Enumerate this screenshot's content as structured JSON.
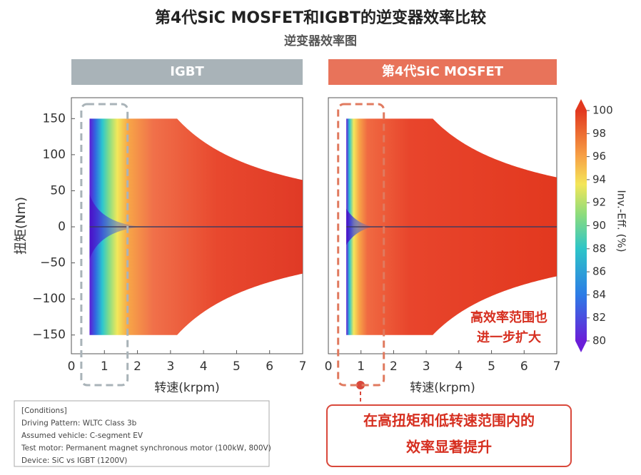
{
  "title": "第4代SiC MOSFET和IGBT的逆变器效率比较",
  "subtitle": "逆变器效率图",
  "chart_data": [
    {
      "type": "contour",
      "title": "IGBT",
      "xlabel": "转速(krpm)",
      "ylabel": "扭矩(Nm)",
      "xlim": [
        0,
        7
      ],
      "xticks": [
        0,
        1,
        2,
        3,
        4,
        5,
        6,
        7
      ],
      "ylim": [
        -176,
        179
      ],
      "yticks": [
        150,
        100,
        50,
        0,
        {
          "value": -50,
          "label": "−50"
        },
        {
          "value": -100,
          "label": "−100"
        },
        {
          "value": -150,
          "label": "−150"
        }
      ]
    },
    {
      "type": "contour",
      "title": "第4代SiC MOSFET",
      "xlabel": "转速(krpm)",
      "xlim": [
        0,
        7
      ],
      "xticks": [
        0,
        1,
        2,
        3,
        4,
        5,
        6,
        7
      ],
      "ylim": [
        -176,
        179
      ]
    }
  ],
  "colorbar": {
    "label": "Inv.-Eff. (%)",
    "lim": [
      80,
      100
    ],
    "ticks": [
      80,
      82,
      84,
      86,
      88,
      90,
      92,
      94,
      96,
      98,
      100
    ]
  },
  "annotation": [
    "高效率范围也",
    "进一步扩大"
  ],
  "callout": [
    "在高扭矩和低转速范围内的",
    "效率显著提升"
  ],
  "conditions": [
    "[Conditions]",
    "Driving Pattern: WLTC Class 3b",
    "Assumed vehicle: C-segment EV",
    "Test motor: Permanent magnet synchronous motor (100kW, 800V)",
    "Device: SiC vs IGBT (1200V)"
  ]
}
